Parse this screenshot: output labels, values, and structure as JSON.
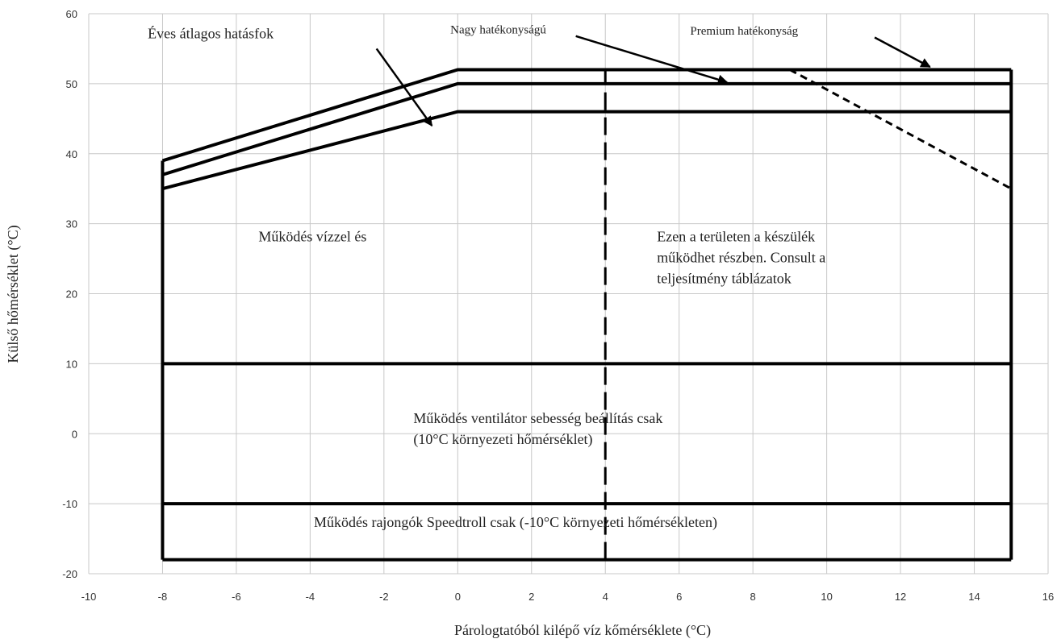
{
  "chart_data": {
    "type": "line",
    "xlabel": "Párologtatóból kilépő víz kőmérséklete (°C)",
    "ylabel": "Külső hőmérséklet (°C)",
    "xlim": [
      -10,
      16
    ],
    "ylim": [
      -20,
      60
    ],
    "xticks": [
      -10,
      -8,
      -6,
      -4,
      -2,
      0,
      2,
      4,
      6,
      8,
      10,
      12,
      14,
      16
    ],
    "yticks": [
      -20,
      -10,
      0,
      10,
      20,
      30,
      40,
      50,
      60
    ],
    "grid": true,
    "boundaries": [
      {
        "style": "solid",
        "points": [
          [
            -8,
            39
          ],
          [
            0,
            52
          ],
          [
            15,
            52
          ]
        ]
      },
      {
        "style": "solid",
        "points": [
          [
            -8,
            37
          ],
          [
            0,
            50
          ],
          [
            15,
            50
          ]
        ]
      },
      {
        "style": "solid",
        "points": [
          [
            -8,
            35
          ],
          [
            0,
            46
          ],
          [
            15,
            46
          ]
        ]
      },
      {
        "style": "solid",
        "points": [
          [
            -8,
            -18
          ],
          [
            15,
            -18
          ]
        ]
      },
      {
        "style": "solid",
        "points": [
          [
            -8,
            -18
          ],
          [
            -8,
            39
          ]
        ]
      },
      {
        "style": "solid",
        "points": [
          [
            15,
            -18
          ],
          [
            15,
            52
          ]
        ]
      },
      {
        "style": "solid",
        "points": [
          [
            -8,
            10
          ],
          [
            15,
            10
          ]
        ]
      },
      {
        "style": "solid",
        "points": [
          [
            -8,
            -10
          ],
          [
            15,
            -10
          ]
        ]
      },
      {
        "style": "long-dash",
        "points": [
          [
            4,
            -18
          ],
          [
            4,
            52
          ]
        ]
      },
      {
        "style": "short-dash",
        "points": [
          [
            9,
            52
          ],
          [
            15,
            35
          ]
        ]
      }
    ],
    "annotations": [
      {
        "lines": [
          "Éves átlagos hatásfok"
        ],
        "x": -8.4,
        "y": 56.5,
        "size": "large",
        "arrow": {
          "from": [
            -2.2,
            55
          ],
          "to": [
            -0.7,
            44
          ]
        }
      },
      {
        "lines": [
          "Nagy hatékonyságú"
        ],
        "x": -0.2,
        "y": 57.2,
        "size": "small",
        "arrow": {
          "from": [
            3.2,
            56.8
          ],
          "to": [
            7.3,
            50.2
          ]
        }
      },
      {
        "lines": [
          "Premium hatékonyság"
        ],
        "x": 6.3,
        "y": 57.0,
        "size": "small",
        "arrow": {
          "from": [
            11.3,
            56.6
          ],
          "to": [
            12.8,
            52.4
          ]
        }
      },
      {
        "lines": [
          "Működés vízzel és"
        ],
        "x": -5.4,
        "y": 27.5,
        "size": "large"
      },
      {
        "lines": [
          "Ezen a területen a készülék",
          "működhet részben. Consult a",
          "teljesítmény táblázatok"
        ],
        "x": 5.4,
        "y": 27.5,
        "size": "large"
      },
      {
        "lines": [
          "Működés ventilátor sebesség beállítás csak",
          "(10°C környezeti hőmérséklet)"
        ],
        "x": -1.2,
        "y": 1.5,
        "size": "large"
      },
      {
        "lines": [
          "Működés rajongók Speedtroll csak (-10°C környezeti hőmérsékleten)"
        ],
        "x": -3.9,
        "y": -13.3,
        "size": "large"
      }
    ]
  }
}
